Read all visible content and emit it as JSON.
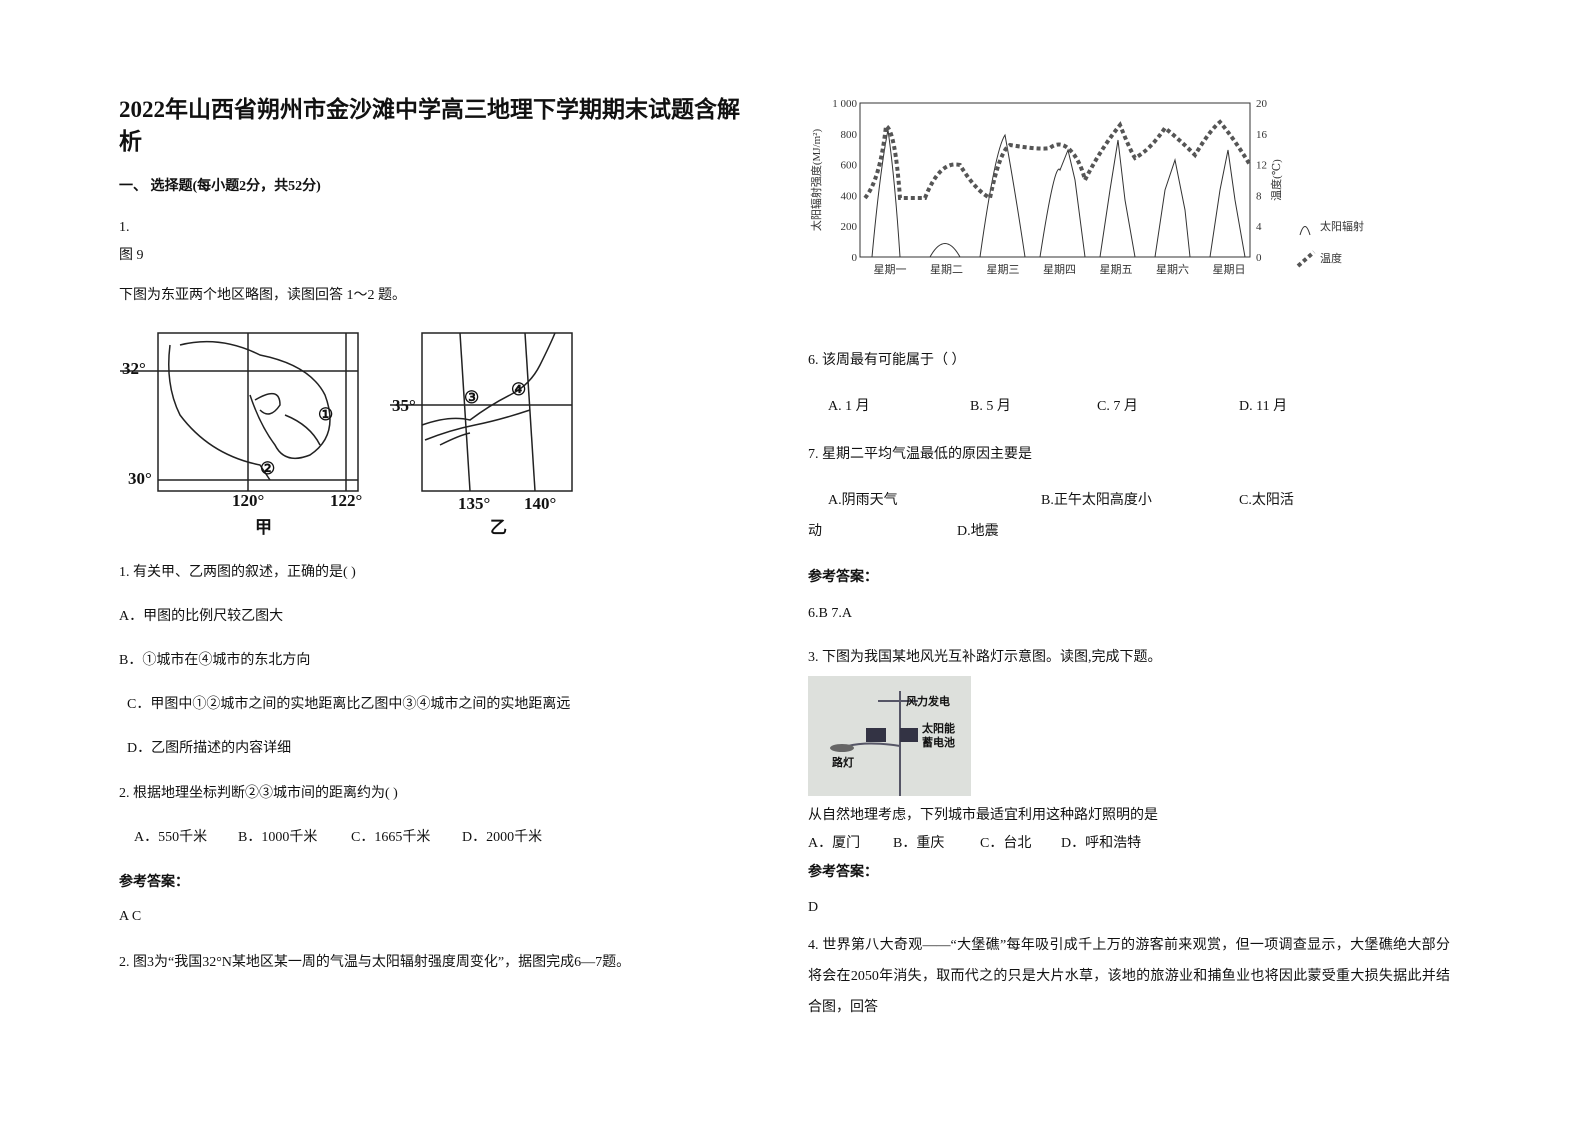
{
  "title": "2022年山西省朔州市金沙滩中学高三地理下学期期末试题含解析",
  "section": "一、 选择题(每小题2分，共52分)",
  "q1": {
    "number": "1.",
    "figure_ref": "图 9",
    "intro": "下图为东亚两个地区略图，读图回答 1～2 题。",
    "map_a": {
      "lat_top": "32°",
      "lat_bottom": "30°",
      "lon_left": "120°",
      "lon_right": "122°",
      "caption": "甲",
      "city1": "①",
      "city2": "②"
    },
    "map_b": {
      "lat": "35°",
      "lon_left": "135°",
      "lon_right": "140°",
      "caption": "乙",
      "city3": "③",
      "city4": "④"
    },
    "sub1": {
      "stem": "1. 有关甲、乙两图的叙述，正确的是(    )",
      "options": [
        "A．甲图的比例尺较乙图大",
        "B．①城市在④城市的东北方向",
        "C．甲图中①②城市之间的实地距离比乙图中③④城市之间的实地距离远",
        "D．乙图所描述的内容详细"
      ]
    },
    "sub2": {
      "stem": "2. 根据地理坐标判断②③城市间的距离约为(    )",
      "options": [
        "A．550千米",
        "B．1000千米",
        "C．1665千米",
        "D．2000千米"
      ]
    },
    "answer_label": "参考答案：",
    "answer": "A  C"
  },
  "q2": {
    "intro": "2. 图3为“我国32°N某地区某一周的气温与太阳辐射强度周变化”，据图完成6—7题。",
    "figure": {
      "y_label": "太阳辐射强度(MJ/m²)",
      "y2_label": "温度(℃)",
      "yticks": [
        "1 000",
        "800",
        "600",
        "400",
        "200",
        "0"
      ],
      "y2ticks": [
        "20",
        "16",
        "12",
        "8",
        "4",
        "0"
      ],
      "categories": [
        "星期一",
        "星期二",
        "星期三",
        "星期四",
        "星期五",
        "星期六",
        "星期日"
      ],
      "legend": [
        "太阳辐射",
        "温度"
      ]
    },
    "sub6": {
      "stem": "6.  该周最有可能属于（  ）",
      "options": [
        "A. 1 月",
        "B. 5 月",
        "C. 7 月",
        "D. 11 月"
      ]
    },
    "sub7": {
      "stem": "7.  星期二平均气温最低的原因主要是",
      "options": [
        "A.阴雨天气",
        "B.正午太阳高度小",
        "C.太阳活",
        "动",
        "D.地震"
      ]
    },
    "answer_label": "参考答案：",
    "answer": "6.B   7.A"
  },
  "q3": {
    "intro": "3. 下图为我国某地风光互补路灯示意图。读图,完成下题。",
    "photo": {
      "wind": "风力发电",
      "solar1": "太阳能",
      "solar2": "蓄电池",
      "lamp": "路灯"
    },
    "stem": "从自然地理考虑，下列城市最适宜利用这种路灯照明的是",
    "options": [
      "A．厦门",
      "B．重庆",
      "C．台北",
      "D．呼和浩特"
    ],
    "answer_label": "参考答案：",
    "answer": "D"
  },
  "q4": {
    "text": "4. 世界第八大奇观——“大堡礁”每年吸引成千上万的游客前来观赏，但一项调查显示，大堡礁绝大部分将会在2050年消失，取而代之的只是大片水草，该地的旅游业和捕鱼业也将因此蒙受重大损失据此并结合图，回答"
  }
}
